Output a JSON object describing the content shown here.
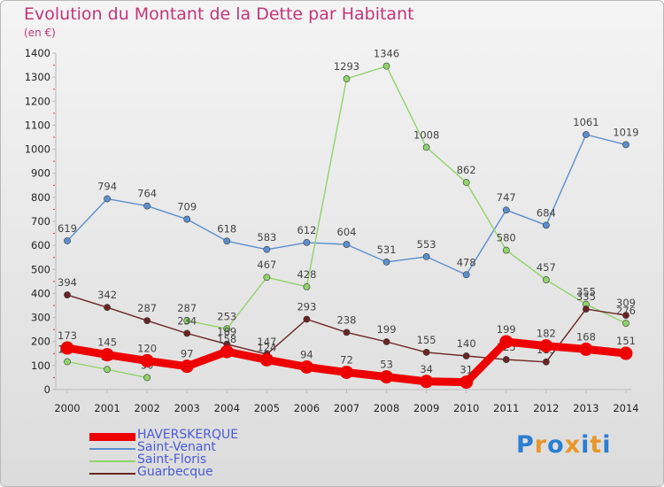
{
  "title": "Evolution du Montant de la Dette par Habitant",
  "unit_label": "(en €)",
  "brand": {
    "letters": [
      "P",
      "r",
      "o",
      "x",
      "i",
      "t",
      "i"
    ],
    "colors": [
      "#2b7fd1",
      "#e8972a",
      "#2b7fd1",
      "#e8972a",
      "#2b7fd1",
      "#e8972a",
      "#2b7fd1"
    ]
  },
  "chart_data": {
    "type": "line",
    "title": "Evolution du Montant de la Dette par Habitant",
    "ylabel": "(en €)",
    "xlabel": "",
    "x": [
      "2000",
      "2001",
      "2002",
      "2003",
      "2004",
      "2005",
      "2006",
      "2007",
      "2008",
      "2009",
      "2010",
      "2011",
      "2012",
      "2013",
      "2014"
    ],
    "ylim": [
      0,
      1400
    ],
    "yticks": [
      "0",
      "100",
      "200",
      "300",
      "400",
      "500",
      "600",
      "700",
      "800",
      "900",
      "1000",
      "1100",
      "1200",
      "1300",
      "1400"
    ],
    "grid": false,
    "legend_position": "bottom-left",
    "series": [
      {
        "name": "HAVERSKERQUE",
        "color": "#ee0000",
        "values": [
          173,
          145,
          120,
          97,
          158,
          124,
          94,
          72,
          53,
          34,
          31,
          199,
          182,
          168,
          151
        ],
        "labels": [
          "173",
          "145",
          "120",
          "97",
          "158",
          "124",
          "94",
          "72",
          "53",
          "34",
          "31",
          "199",
          "182",
          "168",
          "151"
        ],
        "emphasis": true
      },
      {
        "name": "Saint-Venant",
        "color": "#5b8fcf",
        "values": [
          619,
          794,
          764,
          709,
          618,
          583,
          612,
          604,
          531,
          553,
          478,
          747,
          684,
          1061,
          1019
        ],
        "labels": [
          "619",
          "794",
          "764",
          "709",
          "618",
          "583",
          "612",
          "604",
          "531",
          "553",
          "478",
          "747",
          "684",
          "1061",
          "1019"
        ]
      },
      {
        "name": "Saint-Floris",
        "color": "#8fd46a",
        "values": [
          116,
          84,
          50,
          287,
          253,
          467,
          428,
          1293,
          1346,
          1008,
          862,
          580,
          457,
          355,
          276
        ],
        "labels": [
          "116",
          "84",
          "50",
          "287",
          "253",
          "467",
          "428",
          "1293",
          "1346",
          "1008",
          "862",
          "580",
          "457",
          "355",
          "276"
        ],
        "breaks_after": [
          2
        ]
      },
      {
        "name": "Guarbecque",
        "color": "#6b2424",
        "values": [
          394,
          342,
          287,
          234,
          189,
          147,
          293,
          238,
          199,
          155,
          140,
          125,
          115,
          335,
          309
        ],
        "labels": [
          "394",
          "342",
          "287",
          "234",
          "189",
          "147",
          "293",
          "238",
          "199",
          "155",
          "140",
          "125",
          "115",
          "335",
          "309"
        ]
      }
    ]
  }
}
